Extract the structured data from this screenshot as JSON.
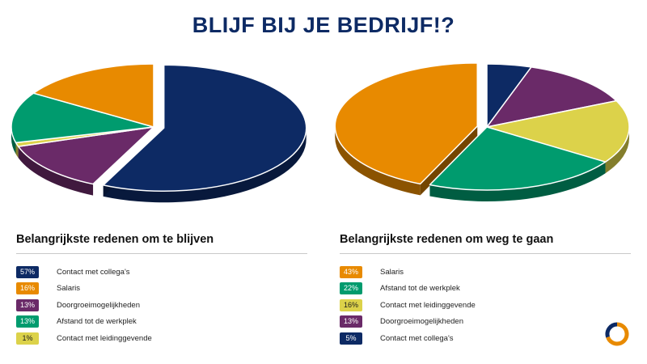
{
  "page": {
    "title": "BLIJF BIJ JE BEDRIJF!?"
  },
  "colors": {
    "navy": "#0d2a64",
    "orange": "#e88a00",
    "purple": "#6a2a68",
    "green": "#009b6e",
    "yellow": "#dcd24a"
  },
  "logo": {
    "icon": "ring-logo-icon",
    "colors": [
      "#e88a00",
      "#0d2a64"
    ]
  },
  "chart_data": [
    {
      "type": "pie",
      "title": "Belangrijkste redenen om te blijven",
      "slices": [
        {
          "label": "Contact met collega's",
          "value": 57,
          "display": "57%",
          "color": "#0d2a64",
          "exploded": true
        },
        {
          "label": "Doorgroeimogelijkheden",
          "value": 13,
          "display": "13%",
          "color": "#6a2a68"
        },
        {
          "label": "Contact met leidinggevende",
          "value": 1,
          "display": "1%",
          "color": "#dcd24a"
        },
        {
          "label": "Afstand tot de werkplek",
          "value": 13,
          "display": "13%",
          "color": "#009b6e"
        },
        {
          "label": "Salaris",
          "value": 16,
          "display": "16%",
          "color": "#e88a00"
        }
      ],
      "legend": [
        {
          "value": "57%",
          "label": "Contact met collega's",
          "color": "#0d2a64",
          "dark_text": false
        },
        {
          "value": "16%",
          "label": "Salaris",
          "color": "#e88a00",
          "dark_text": false
        },
        {
          "value": "13%",
          "label": "Doorgroeimogelijkheden",
          "color": "#6a2a68",
          "dark_text": false
        },
        {
          "value": "13%",
          "label": "Afstand tot de werkplek",
          "color": "#009b6e",
          "dark_text": false
        },
        {
          "value": "1%",
          "label": "Contact met leidinggevende",
          "color": "#dcd24a",
          "dark_text": true
        }
      ]
    },
    {
      "type": "pie",
      "title": "Belangrijkste redenen om weg te gaan",
      "slices": [
        {
          "label": "Contact met collega's",
          "value": 5,
          "display": "5%",
          "color": "#0d2a64"
        },
        {
          "label": "Doorgroeimogelijkheden",
          "value": 13,
          "display": "13%",
          "color": "#6a2a68"
        },
        {
          "label": "Contact met leidinggevende",
          "value": 16,
          "display": "16%",
          "color": "#dcd24a"
        },
        {
          "label": "Afstand tot de werkplek",
          "value": 22,
          "display": "22%",
          "color": "#009b6e"
        },
        {
          "label": "Salaris",
          "value": 43,
          "display": "43%",
          "color": "#e88a00",
          "exploded": true
        }
      ],
      "legend": [
        {
          "value": "43%",
          "label": "Salaris",
          "color": "#e88a00",
          "dark_text": false
        },
        {
          "value": "22%",
          "label": "Afstand tot de werkplek",
          "color": "#009b6e",
          "dark_text": false
        },
        {
          "value": "16%",
          "label": "Contact met leidinggevende",
          "color": "#dcd24a",
          "dark_text": true
        },
        {
          "value": "13%",
          "label": "Doorgroeimogelijkheden",
          "color": "#6a2a68",
          "dark_text": false
        },
        {
          "value": "5%",
          "label": "Contact met collega's",
          "color": "#0d2a64",
          "dark_text": false
        }
      ]
    }
  ]
}
